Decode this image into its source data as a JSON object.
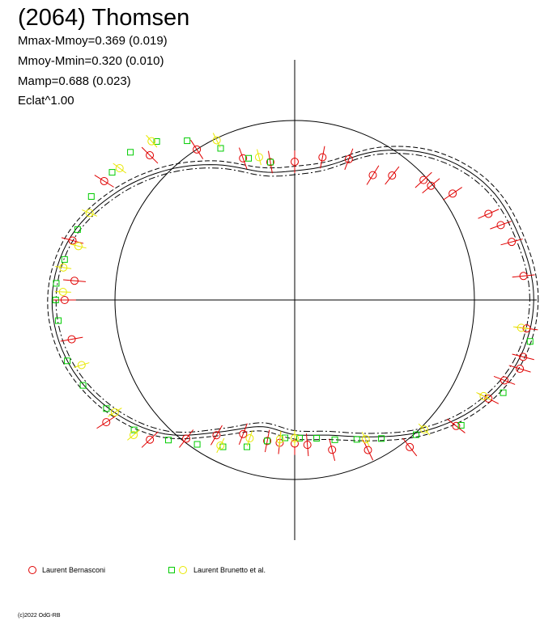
{
  "title": "(2064) Thomsen",
  "stats": [
    "Mmax-Mmoy=0.369 (0.019)",
    "Mmoy-Mmin=0.320 (0.010)",
    "Mamp=0.688 (0.023)",
    "Eclat^1.00"
  ],
  "legend": [
    {
      "label": "Laurent Bernasconi",
      "markers": [
        "circle"
      ],
      "colors": [
        "#e00000"
      ]
    },
    {
      "label": "Laurent Brunetto et al.",
      "markers": [
        "square",
        "circle"
      ],
      "colors": [
        "#00cc00",
        "#e8e800"
      ]
    }
  ],
  "footer": "(c)2022 OdG-RB",
  "colors": {
    "bernasconi": "#e00000",
    "brunetto_square": "#00cc00",
    "brunetto_circle": "#e8e800",
    "curve": "#000000"
  },
  "chart_data": {
    "type": "scatter",
    "projection": "polar",
    "note_units": "radius = relative flux (mean = 1)",
    "reference_circle_radius": 1.0,
    "shape_model": {
      "theta_deg": [
        0,
        15,
        30,
        45,
        60,
        75,
        90,
        105,
        120,
        135,
        150,
        165,
        180,
        195,
        210,
        225,
        240,
        255,
        270,
        285,
        300,
        315,
        330,
        345
      ],
      "radius": [
        1.33,
        1.3,
        1.25,
        1.13,
        0.96,
        0.78,
        0.72,
        0.74,
        0.87,
        1.02,
        1.17,
        1.3,
        1.35,
        1.31,
        1.2,
        1.05,
        0.85,
        0.73,
        0.75,
        0.78,
        0.88,
        1.03,
        1.18,
        1.29
      ],
      "line_styles": [
        "solid",
        "dashed",
        "dashdot"
      ]
    },
    "series": [
      {
        "name": "Laurent Bernasconi",
        "marker": "circle",
        "theta_deg": [
          180,
          190,
          175,
          165,
          148,
          135,
          123,
          110,
          100,
          90,
          79,
          69,
          58,
          52,
          43,
          40,
          34,
          24,
          20,
          15,
          6,
          353,
          346,
          343,
          339,
          333,
          322,
          308,
          296,
          284,
          275,
          270,
          264,
          259,
          249,
          240,
          232,
          224,
          213
        ],
        "radius": [
          1.28,
          1.26,
          1.23,
          1.28,
          1.25,
          1.14,
          1.0,
          0.84,
          0.78,
          0.77,
          0.81,
          0.84,
          0.82,
          0.88,
          0.98,
          0.99,
          1.06,
          1.18,
          1.22,
          1.25,
          1.28,
          1.3,
          1.31,
          1.31,
          1.25,
          1.21,
          1.14,
          1.04,
          0.93,
          0.86,
          0.81,
          0.8,
          0.8,
          0.8,
          0.8,
          0.87,
          0.98,
          1.12,
          1.25
        ]
      },
      {
        "name": "Laurent Brunetto et al.",
        "marker": "square",
        "theta_deg": [
          185,
          180,
          176,
          170,
          162,
          153,
          145,
          138,
          131,
          124,
          116,
          108,
          100,
          195,
          202,
          210,
          219,
          228,
          236,
          244,
          252,
          259,
          266,
          272,
          279,
          286,
          294,
          302,
          312,
          323,
          336,
          350
        ],
        "radius": [
          1.32,
          1.33,
          1.33,
          1.3,
          1.27,
          1.27,
          1.24,
          1.23,
          1.17,
          1.07,
          0.94,
          0.83,
          0.78,
          1.31,
          1.27,
          1.21,
          1.15,
          1.05,
          0.97,
          0.91,
          0.86,
          0.8,
          0.77,
          0.77,
          0.78,
          0.81,
          0.85,
          0.91,
          1.01,
          1.16,
          1.27,
          1.33
        ]
      },
      {
        "name": "Laurent Brunetto et al. (yellow)",
        "marker": "circle",
        "theta_deg": [
          178,
          172,
          166,
          157,
          143,
          132,
          116,
          104,
          197,
          212,
          220,
          243,
          252,
          264,
          270,
          297,
          315,
          333,
          353
        ],
        "radius": [
          1.29,
          1.3,
          1.24,
          1.24,
          1.22,
          1.19,
          0.99,
          0.82,
          1.24,
          1.18,
          1.17,
          0.91,
          0.81,
          0.78,
          0.77,
          0.87,
          1.02,
          1.18,
          1.27
        ]
      }
    ]
  }
}
